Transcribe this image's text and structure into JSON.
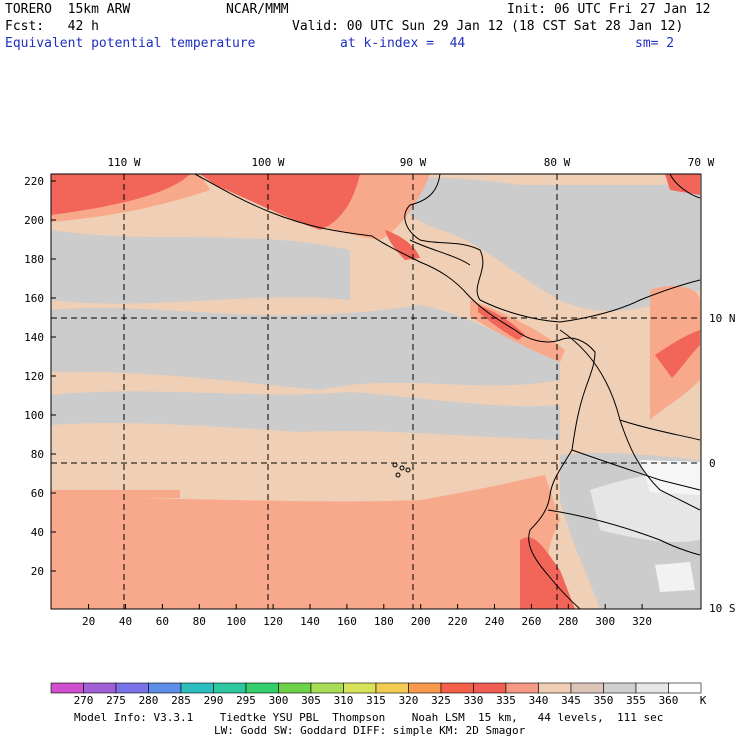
{
  "header": {
    "model": "TORERO  15km ARW",
    "org": "NCAR/MMM",
    "init": "Init: 06 UTC Fri 27 Jan 12",
    "fcst": "Fcst:   42 h",
    "valid": "Valid: 00 UTC Sun 29 Jan 12 (18 CST Sat 28 Jan 12)",
    "field": "Equivalent potential temperature",
    "level": "at k-index =  44",
    "smooth": "sm= 2"
  },
  "colors": {
    "header_blue": "#1f2fbf",
    "band_tan": "#efcfb5",
    "band_gray": "#cccccc",
    "band_salmon": "#f9a98b",
    "band_red": "#f26659"
  },
  "map": {
    "x_axis_ticks": [
      "20",
      "40",
      "60",
      "80",
      "100",
      "120",
      "140",
      "160",
      "180",
      "200",
      "220",
      "240",
      "260",
      "280",
      "300",
      "320"
    ],
    "y_axis_ticks": [
      "220",
      "200",
      "180",
      "160",
      "140",
      "120",
      "100",
      "80",
      "60",
      "40",
      "20"
    ],
    "lon_labels": [
      "110 W",
      "100 W",
      "90 W",
      "80 W",
      "70 W"
    ],
    "lat_labels": [
      "10 N",
      "0",
      "10 S"
    ]
  },
  "colorbar": {
    "colors": [
      "#cf4fcf",
      "#a060d8",
      "#7a72e8",
      "#5c8eea",
      "#2dbfbf",
      "#2fc7a0",
      "#35cf6e",
      "#6fd34a",
      "#a8dc56",
      "#d6e258",
      "#f2cd52",
      "#f79a4e",
      "#f56048",
      "#ef5d53",
      "#f49a82",
      "#efcfb5",
      "#dbc6b8",
      "#cfcfcf",
      "#e6e6e6",
      "#ffffff"
    ],
    "labels": [
      "270",
      "275",
      "280",
      "285",
      "290",
      "295",
      "300",
      "305",
      "310",
      "315",
      "320",
      "325",
      "330",
      "335",
      "340",
      "345",
      "350",
      "355",
      "360"
    ],
    "unit": "K"
  },
  "footer": {
    "line1": "Model Info: V3.3.1    Tiedtke YSU PBL  Thompson    Noah LSM  15 km,   44 levels,  111 sec",
    "line2": "LW: Godd SW: Goddard DIFF: simple KM: 2D Smagor"
  }
}
